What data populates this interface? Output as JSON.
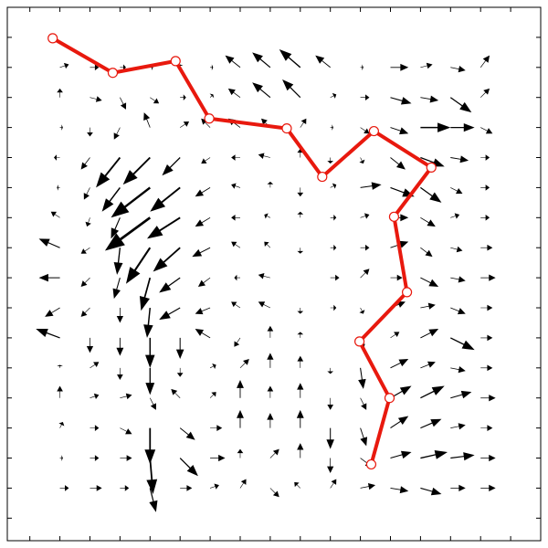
{
  "chart_data": {
    "type": "quiver",
    "xlim": [
      -0.75,
      17
    ],
    "ylim": [
      -0.75,
      17
    ],
    "xticks": [
      0,
      1,
      2,
      3,
      4,
      5,
      6,
      7,
      8,
      9,
      10,
      11,
      12,
      13,
      14,
      15,
      16
    ],
    "yticks": [
      0,
      1,
      2,
      3,
      4,
      5,
      6,
      7,
      8,
      9,
      10,
      11,
      12,
      13,
      14,
      15,
      16
    ],
    "arrow_color": "#000000",
    "x": [
      1,
      2,
      3,
      4,
      5,
      6,
      7,
      8,
      9,
      10,
      11,
      12,
      13,
      14,
      15
    ],
    "y": [
      15,
      14,
      13,
      12,
      11,
      10,
      9,
      8,
      7,
      6,
      5,
      4,
      3,
      2,
      1
    ],
    "u": [
      [
        0.3,
        0.3,
        0.2,
        0.1,
        0,
        0.1,
        -0.5,
        -0.6,
        -0.7,
        -0.5,
        0.1,
        0.6,
        0.4,
        0.5,
        0.3
      ],
      [
        0,
        0.4,
        0.2,
        0.3,
        0.2,
        0.1,
        -0.4,
        -0.6,
        -0.6,
        0.2,
        0.3,
        0.7,
        0.6,
        0.7,
        0.3
      ],
      [
        0.1,
        0,
        -0.2,
        -0.2,
        0.3,
        -0.3,
        -0.4,
        -0.3,
        0.2,
        0.1,
        0.3,
        0.6,
        1.0,
        0.8,
        0.4
      ],
      [
        -0.2,
        -0.3,
        -0.8,
        -0.9,
        -0.6,
        -0.3,
        -0.3,
        -0.4,
        0,
        0,
        0.1,
        0.5,
        0.8,
        0.6,
        0.3
      ],
      [
        -0.1,
        -0.2,
        -0.6,
        -1.3,
        -1.0,
        -0.5,
        -0.3,
        0,
        0,
        0.2,
        0.7,
        0.8,
        0.7,
        0.4,
        0.3
      ],
      [
        -0.3,
        -0.1,
        -0.3,
        -1.5,
        -1.1,
        -0.5,
        -0.3,
        -0.2,
        0,
        0.2,
        0.3,
        0.6,
        0.5,
        0.3,
        0.3
      ],
      [
        -0.7,
        -0.3,
        -0.1,
        -0.8,
        -0.9,
        -0.6,
        -0.3,
        -0.2,
        0,
        0.2,
        0.3,
        0.6,
        0.4,
        0.4,
        0.4
      ],
      [
        -0.7,
        -0.3,
        -0.2,
        -0.3,
        -0.7,
        -0.4,
        -0.2,
        -0.4,
        0,
        0.3,
        0.3,
        0.4,
        0.6,
        0.5,
        0.5
      ],
      [
        -0.5,
        -0.3,
        0,
        -0.1,
        -0.7,
        -0.5,
        -0.3,
        -0.4,
        0,
        0.2,
        0.1,
        0.5,
        0.5,
        0.5,
        0.4
      ],
      [
        -0.8,
        0,
        0,
        0,
        0,
        -0.5,
        -0.2,
        0,
        0,
        0,
        0.1,
        0.3,
        0.6,
        0.8,
        0.4
      ],
      [
        0,
        0.3,
        0,
        0,
        0,
        0.2,
        0.3,
        0,
        0,
        0,
        0.1,
        0.6,
        0.5,
        0.5,
        0.4
      ],
      [
        0,
        0.3,
        0.4,
        0.2,
        -0.3,
        0.2,
        0,
        0,
        0,
        0,
        0.2,
        0.7,
        0.8,
        0.7,
        0.5
      ],
      [
        0.1,
        0.3,
        0.4,
        0,
        0.5,
        0.4,
        0,
        0,
        0,
        0,
        0.2,
        0.6,
        0.7,
        0.5,
        0.4
      ],
      [
        0.1,
        0.3,
        0.4,
        0.1,
        0.6,
        0.5,
        0,
        0.3,
        0,
        0,
        0.4,
        0.7,
        0.9,
        0.8,
        0.5
      ],
      [
        0.3,
        0.4,
        0.3,
        0.2,
        0.4,
        0.3,
        0.2,
        0.3,
        -0.2,
        0.2,
        0.5,
        0.6,
        0.7,
        0.5,
        0.5
      ]
    ],
    "v": [
      [
        0.1,
        0,
        0,
        0,
        0.1,
        0,
        0.4,
        0.5,
        0.6,
        0.4,
        0,
        0,
        0.1,
        -0.1,
        0.4
      ],
      [
        0.3,
        -0.1,
        -0.4,
        -0.2,
        0,
        0.1,
        0.3,
        0.5,
        0.6,
        0.1,
        0,
        -0.2,
        -0.1,
        -0.5,
        0.3
      ],
      [
        0,
        -0.3,
        -0.4,
        0.5,
        0.2,
        0.3,
        0.3,
        0.3,
        0.3,
        0,
        -0.2,
        -0.2,
        0,
        0,
        -0.2
      ],
      [
        0,
        -0.4,
        -1.0,
        -0.9,
        -0.6,
        -0.2,
        0,
        0.1,
        0.3,
        -0.2,
        -0.2,
        -0.4,
        -0.3,
        -0.1,
        0
      ],
      [
        0,
        -0.4,
        -0.8,
        -1.0,
        -0.8,
        -0.3,
        0.1,
        0.2,
        -0.3,
        0.1,
        0.1,
        -0.3,
        -0.5,
        -0.2,
        0
      ],
      [
        0.2,
        -0.3,
        -0.7,
        -1.1,
        -0.7,
        -0.3,
        0,
        0.1,
        0.2,
        0,
        0.1,
        0,
        -0.3,
        0.1,
        0
      ],
      [
        0.3,
        -0.2,
        -0.9,
        -1.2,
        -0.8,
        -0.3,
        0.2,
        0.2,
        -0.2,
        0,
        0,
        0.2,
        -0.3,
        -0.1,
        0
      ],
      [
        0,
        -0.3,
        -0.7,
        -1.1,
        -0.5,
        -0.3,
        0,
        0.1,
        0,
        0,
        0.3,
        0,
        -0.3,
        -0.1,
        0
      ],
      [
        -0.3,
        -0.3,
        -0.5,
        -1.0,
        -0.4,
        -0.2,
        0.2,
        0.2,
        -0.2,
        0,
        -0.2,
        0.2,
        0.1,
        -0.2,
        0
      ],
      [
        0.3,
        -0.5,
        -0.6,
        -1.0,
        -0.7,
        0.3,
        -0.3,
        0.4,
        0.2,
        0,
        -0.4,
        0.2,
        0.3,
        -0.4,
        0
      ],
      [
        0.1,
        0.2,
        -0.4,
        -0.9,
        -0.3,
        0.1,
        0.3,
        0.5,
        0.4,
        -0.2,
        -0.7,
        0.3,
        0.2,
        -0.1,
        0
      ],
      [
        0.4,
        0.1,
        0.1,
        -0.4,
        0.3,
        0.2,
        0.6,
        0.4,
        0.5,
        -0.4,
        -0.4,
        0.4,
        0.4,
        0.2,
        0
      ],
      [
        0.2,
        0,
        -0.2,
        -1.2,
        -0.4,
        0,
        0.6,
        0.5,
        0.6,
        -0.7,
        -0.6,
        0.4,
        0.3,
        0.1,
        0
      ],
      [
        0,
        0,
        0,
        -1.2,
        -0.6,
        0,
        0.3,
        0.3,
        0.5,
        -0.5,
        -0.3,
        0.2,
        0.2,
        0.1,
        0
      ],
      [
        0,
        0,
        0,
        -0.8,
        0,
        0.1,
        0.3,
        -0.3,
        0.2,
        0.3,
        0.1,
        -0.1,
        -0.2,
        0,
        0
      ]
    ],
    "path": {
      "color": "#e8190e",
      "marker_fill": "#ffffff",
      "x": [
        0.76,
        2.76,
        4.85,
        5.97,
        8.55,
        9.73,
        11.45,
        13.36,
        12.12,
        12.55,
        10.97,
        11.97,
        11.36
      ],
      "y": [
        15.97,
        14.82,
        15.21,
        13.3,
        12.97,
        11.36,
        12.88,
        11.67,
        10.03,
        7.52,
        5.88,
        4.0,
        1.79
      ]
    }
  }
}
